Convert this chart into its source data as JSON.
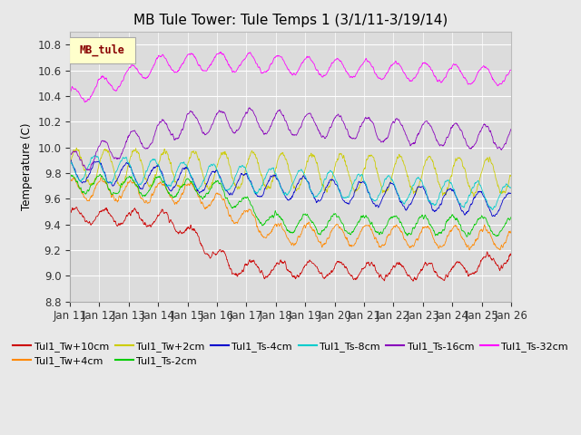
{
  "title": "MB Tule Tower: Tule Temps 1 (3/1/11-3/19/14)",
  "ylabel": "Temperature (C)",
  "ylim": [
    8.8,
    10.9
  ],
  "yticks": [
    8.8,
    9.0,
    9.2,
    9.4,
    9.6,
    9.8,
    10.0,
    10.2,
    10.4,
    10.6,
    10.8
  ],
  "xlabel_ticks": [
    "Jan 11",
    "Jan 12",
    "Jan 13",
    "Jan 14",
    "Jan 15",
    "Jan 16",
    "Jan 17",
    "Jan 18",
    "Jan 19",
    "Jan 20",
    "Jan 21",
    "Jan 22",
    "Jan 23",
    "Jan 24",
    "Jan 25",
    "Jan 26"
  ],
  "n_points": 1500,
  "series": [
    {
      "label": "Tul1_Tw+10cm",
      "color": "#cc0000"
    },
    {
      "label": "Tul1_Tw+4cm",
      "color": "#ff8800"
    },
    {
      "label": "Tul1_Tw+2cm",
      "color": "#cccc00"
    },
    {
      "label": "Tul1_Ts-2cm",
      "color": "#00cc00"
    },
    {
      "label": "Tul1_Ts-4cm",
      "color": "#0000cc"
    },
    {
      "label": "Tul1_Ts-8cm",
      "color": "#00cccc"
    },
    {
      "label": "Tul1_Ts-16cm",
      "color": "#8800bb"
    },
    {
      "label": "Tul1_Ts-32cm",
      "color": "#ff00ff"
    }
  ],
  "legend_box_label": "MB_tule",
  "legend_box_color": "#ffffcc",
  "legend_box_text_color": "#880000",
  "bg_color": "#e8e8e8",
  "plot_bg_color": "#dcdcdc",
  "title_fontsize": 11,
  "axis_fontsize": 8.5,
  "legend_fontsize": 8
}
